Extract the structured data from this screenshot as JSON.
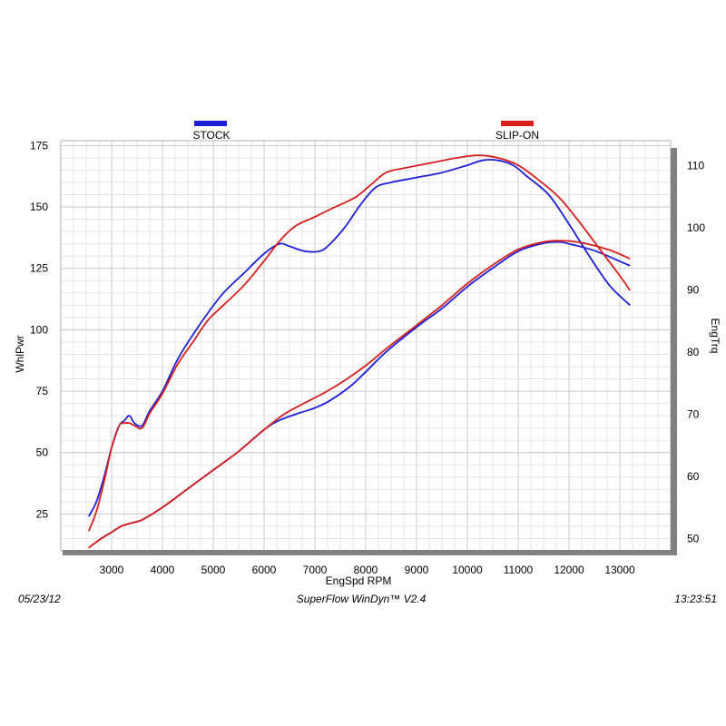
{
  "footer": {
    "date": "05/23/12",
    "software": "SuperFlow WinDyn™  V2.4",
    "time": "13:23:51"
  },
  "chart_data": {
    "type": "line",
    "xlabel": "EngSpd  RPM",
    "ylabel_left": "WhlPwr",
    "ylabel_right": "EngTrq",
    "xlim": [
      2000,
      14000
    ],
    "xticks": [
      3000,
      4000,
      5000,
      6000,
      7000,
      8000,
      9000,
      10000,
      11000,
      12000,
      13000
    ],
    "ylim_left": [
      10,
      177
    ],
    "yticks_left": [
      25,
      50,
      75,
      100,
      125,
      150,
      175
    ],
    "ylim_right": [
      48,
      114
    ],
    "yticks_right": [
      50,
      60,
      70,
      80,
      90,
      100,
      110
    ],
    "grid": true,
    "legend_placement": "top",
    "series": [
      {
        "name": "STOCK",
        "color": "#1f1fd6",
        "power": [
          [
            2550,
            24
          ],
          [
            2700,
            30
          ],
          [
            2850,
            40
          ],
          [
            3000,
            52
          ],
          [
            3150,
            61
          ],
          [
            3250,
            63
          ],
          [
            3350,
            65
          ],
          [
            3450,
            62
          ],
          [
            3600,
            61
          ],
          [
            3750,
            67
          ],
          [
            4000,
            75
          ],
          [
            4300,
            88
          ],
          [
            4600,
            98
          ],
          [
            4900,
            107
          ],
          [
            5200,
            115
          ],
          [
            5600,
            123
          ],
          [
            6000,
            131
          ],
          [
            6300,
            135
          ],
          [
            6500,
            134
          ],
          [
            6800,
            132
          ],
          [
            7100,
            132
          ],
          [
            7300,
            135
          ],
          [
            7600,
            142
          ],
          [
            7900,
            151
          ],
          [
            8200,
            158
          ],
          [
            8500,
            160
          ],
          [
            9000,
            162
          ],
          [
            9500,
            164
          ],
          [
            10000,
            167
          ],
          [
            10300,
            169
          ],
          [
            10600,
            169
          ],
          [
            10900,
            167
          ],
          [
            11200,
            162
          ],
          [
            11600,
            155
          ],
          [
            12000,
            143
          ],
          [
            12400,
            130
          ],
          [
            12800,
            118
          ],
          [
            13200,
            110
          ]
        ],
        "torque": [
          [
            2550,
            48.5
          ],
          [
            2800,
            50
          ],
          [
            3000,
            51
          ],
          [
            3200,
            52
          ],
          [
            3400,
            52.5
          ],
          [
            3600,
            53
          ],
          [
            4000,
            55
          ],
          [
            4500,
            58
          ],
          [
            5000,
            61
          ],
          [
            5500,
            64
          ],
          [
            6000,
            67.5
          ],
          [
            6300,
            69
          ],
          [
            6700,
            70.2
          ],
          [
            7000,
            71
          ],
          [
            7300,
            72.2
          ],
          [
            7700,
            74.5
          ],
          [
            8000,
            76.8
          ],
          [
            8400,
            80
          ],
          [
            9000,
            84
          ],
          [
            9500,
            87
          ],
          [
            10000,
            90.5
          ],
          [
            10500,
            93.5
          ],
          [
            11000,
            96.2
          ],
          [
            11500,
            97.5
          ],
          [
            11800,
            97.7
          ],
          [
            12000,
            97.4
          ],
          [
            12500,
            96.3
          ],
          [
            13000,
            94.6
          ],
          [
            13200,
            93.9
          ]
        ]
      },
      {
        "name": "SLIP-ON",
        "color": "#d61f1f",
        "power": [
          [
            2550,
            18
          ],
          [
            2700,
            26
          ],
          [
            2850,
            38
          ],
          [
            3000,
            52
          ],
          [
            3150,
            61
          ],
          [
            3250,
            62
          ],
          [
            3350,
            62
          ],
          [
            3450,
            61
          ],
          [
            3600,
            60
          ],
          [
            3750,
            66
          ],
          [
            4000,
            74
          ],
          [
            4300,
            86
          ],
          [
            4600,
            95
          ],
          [
            4900,
            104
          ],
          [
            5200,
            110
          ],
          [
            5600,
            118
          ],
          [
            6000,
            128
          ],
          [
            6300,
            136
          ],
          [
            6600,
            142
          ],
          [
            7000,
            146
          ],
          [
            7400,
            150
          ],
          [
            7800,
            154
          ],
          [
            8100,
            159
          ],
          [
            8400,
            164
          ],
          [
            8800,
            166
          ],
          [
            9300,
            168
          ],
          [
            9800,
            170
          ],
          [
            10200,
            171
          ],
          [
            10600,
            170
          ],
          [
            11000,
            167
          ],
          [
            11400,
            161
          ],
          [
            11800,
            154
          ],
          [
            12200,
            144
          ],
          [
            12600,
            133
          ],
          [
            13000,
            122
          ],
          [
            13200,
            116
          ]
        ],
        "torque": [
          [
            2550,
            48.5
          ],
          [
            2800,
            50
          ],
          [
            3000,
            51
          ],
          [
            3200,
            52
          ],
          [
            3400,
            52.5
          ],
          [
            3600,
            53
          ],
          [
            4000,
            55
          ],
          [
            4500,
            58
          ],
          [
            5000,
            61
          ],
          [
            5500,
            64
          ],
          [
            6000,
            67.5
          ],
          [
            6400,
            70
          ],
          [
            6800,
            71.8
          ],
          [
            7200,
            73.5
          ],
          [
            7600,
            75.5
          ],
          [
            8000,
            77.8
          ],
          [
            8400,
            80.5
          ],
          [
            9000,
            84.3
          ],
          [
            9500,
            87.5
          ],
          [
            10000,
            91
          ],
          [
            10500,
            94
          ],
          [
            11000,
            96.5
          ],
          [
            11500,
            97.7
          ],
          [
            11900,
            97.9
          ],
          [
            12300,
            97.5
          ],
          [
            12800,
            96.4
          ],
          [
            13200,
            95
          ]
        ]
      }
    ]
  }
}
